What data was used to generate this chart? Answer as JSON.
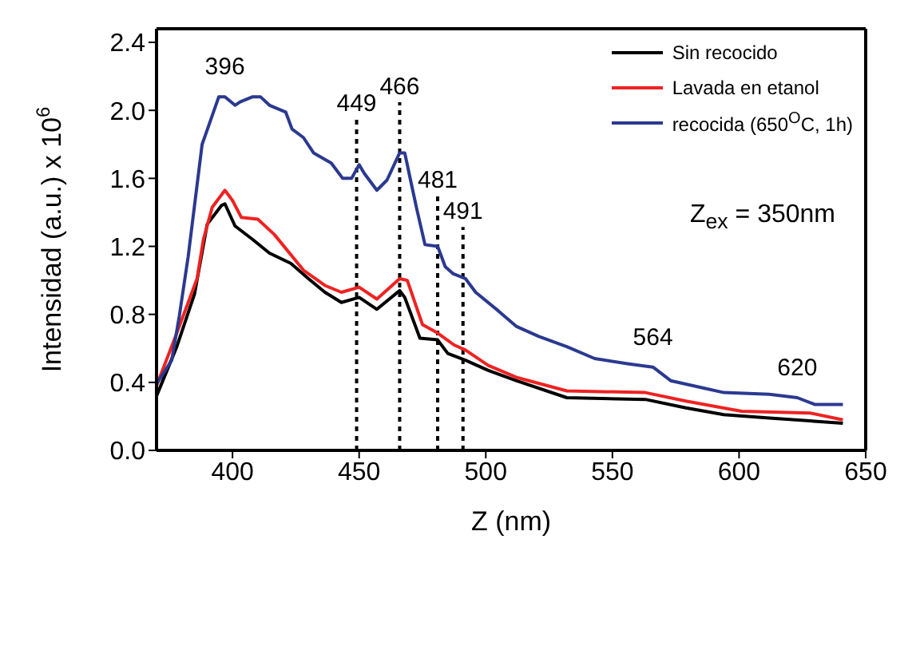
{
  "chart_data": {
    "type": "line",
    "xlabel": "Z (nm)",
    "ylabel": "Intensidad (a.u.) x 10$^{6}$",
    "xlim": [
      370,
      650
    ],
    "xticks": [
      400,
      450,
      500,
      550,
      600,
      650
    ],
    "ylim": [
      0,
      2.48
    ],
    "yticks": [
      {
        "value": 0,
        "label": "0.0"
      },
      0.4,
      0.8,
      1.2,
      1.6,
      {
        "value": 2,
        "label": "2.0"
      },
      2.4
    ],
    "legend": "top right",
    "marker": "none",
    "line_style": "solid",
    "series": [
      {
        "name": "Sin recocido",
        "color": "#000000",
        "x": [
          370,
          378,
          385,
          390,
          395.6,
          397,
          401,
          408,
          414.6,
          423,
          430,
          436.5,
          443,
          450,
          457,
          466,
          468,
          474,
          481,
          485,
          492,
          501,
          512,
          532,
          563,
          579,
          594,
          612,
          641
        ],
        "values": [
          0.32,
          0.61,
          0.92,
          1.33,
          1.44,
          1.45,
          1.32,
          1.24,
          1.16,
          1.1,
          1.01,
          0.93,
          0.87,
          0.9,
          0.83,
          0.94,
          0.9,
          0.66,
          0.65,
          0.57,
          0.53,
          0.47,
          0.41,
          0.31,
          0.3,
          0.25,
          0.21,
          0.19,
          0.16
        ]
      },
      {
        "name": "Lavada en etanol",
        "color": "#ee2222",
        "x": [
          370,
          378,
          386,
          388.5,
          392,
          397,
          400,
          403.5,
          410,
          416.5,
          428,
          436.5,
          443,
          450,
          457,
          466,
          469,
          475,
          481,
          487.5,
          492,
          501,
          512,
          532,
          563,
          579,
          601,
          628,
          641
        ],
        "values": [
          0.38,
          0.69,
          1.01,
          1.24,
          1.43,
          1.53,
          1.47,
          1.37,
          1.36,
          1.27,
          1.06,
          0.97,
          0.93,
          0.96,
          0.89,
          1.01,
          1.0,
          0.74,
          0.69,
          0.62,
          0.59,
          0.5,
          0.43,
          0.35,
          0.34,
          0.29,
          0.23,
          0.22,
          0.18
        ]
      },
      {
        "name": "recocida (650$^{O}$C, 1h)",
        "color": "#2b3990",
        "x": [
          370,
          376,
          379,
          382.5,
          388,
          394.6,
          397,
          401,
          403,
          408,
          411,
          414.6,
          421,
          423.5,
          428,
          432,
          439,
          443.5,
          447,
          450,
          452,
          457,
          461,
          466,
          468,
          470,
          472.6,
          476,
          481,
          484,
          487,
          492,
          496,
          505,
          512,
          521,
          532,
          543,
          556,
          566,
          573,
          585,
          594,
          612,
          623,
          630,
          641
        ],
        "values": [
          0.39,
          0.53,
          0.79,
          1.14,
          1.8,
          2.08,
          2.08,
          2.03,
          2.05,
          2.08,
          2.08,
          2.03,
          1.99,
          1.89,
          1.84,
          1.75,
          1.69,
          1.6,
          1.6,
          1.68,
          1.63,
          1.53,
          1.59,
          1.75,
          1.75,
          1.61,
          1.43,
          1.21,
          1.2,
          1.08,
          1.04,
          1.01,
          0.93,
          0.82,
          0.73,
          0.67,
          0.61,
          0.54,
          0.51,
          0.49,
          0.41,
          0.37,
          0.34,
          0.33,
          0.31,
          0.27,
          0.27
        ]
      }
    ],
    "ref_lines": [
      {
        "axis": "x",
        "value": 449,
        "label": "449",
        "line_style": "dotted",
        "color": "#000000"
      },
      {
        "axis": "x",
        "value": 466,
        "label": "466",
        "line_style": "dotted",
        "color": "#000000"
      },
      {
        "axis": "x",
        "value": 481,
        "label": "481",
        "line_style": "dotted",
        "color": "#000000"
      },
      {
        "axis": "x",
        "value": 491,
        "label": "491",
        "line_style": "dotted",
        "color": "#000000"
      }
    ],
    "annotations": [
      {
        "text": "396",
        "x": 397,
        "y": 2.08
      },
      {
        "text": "564",
        "x": 566,
        "y": 0.49
      },
      {
        "text": "620",
        "x": 623,
        "y": 0.31
      },
      "Z$_{ex}$ = 350nm"
    ]
  }
}
